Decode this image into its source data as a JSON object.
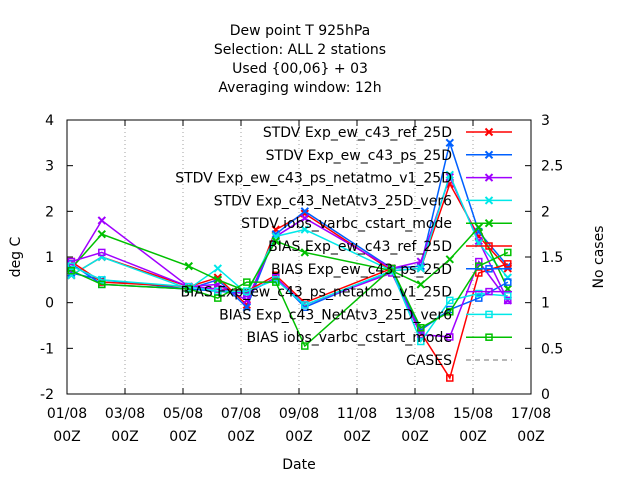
{
  "chart_data": {
    "type": "line",
    "title_lines": [
      "Dew point T 925hPa",
      "Selection: ALL      2 stations",
      "Used {00,06} + 03",
      "Averaging window: 12h"
    ],
    "xlabel": "Date",
    "ylabel": "deg C",
    "y2label": "No cases",
    "x_ticks": [
      {
        "x": 1,
        "line1": "01/08",
        "line2": "00Z"
      },
      {
        "x": 3,
        "line1": "03/08",
        "line2": "00Z"
      },
      {
        "x": 5,
        "line1": "05/08",
        "line2": "00Z"
      },
      {
        "x": 7,
        "line1": "07/08",
        "line2": "00Z"
      },
      {
        "x": 9,
        "line1": "09/08",
        "line2": "00Z"
      },
      {
        "x": 11,
        "line1": "11/08",
        "line2": "00Z"
      },
      {
        "x": 13,
        "line1": "13/08",
        "line2": "00Z"
      },
      {
        "x": 15,
        "line1": "15/08",
        "line2": "00Z"
      },
      {
        "x": 17,
        "line1": "17/08",
        "line2": "00Z"
      }
    ],
    "xlim": [
      1,
      17
    ],
    "ylim": [
      -2,
      4
    ],
    "y_ticks": [
      -2,
      -1,
      0,
      1,
      2,
      3,
      4
    ],
    "y2lim": [
      0,
      3
    ],
    "y2_ticks": [
      0,
      0.5,
      1,
      1.5,
      2,
      2.5,
      3
    ],
    "y2_tick_labels": [
      "0",
      "0.5",
      "1",
      "1.5",
      "2",
      "2.5",
      "3"
    ],
    "legend_position": "top-right",
    "series": [
      {
        "name": "STDV Exp_ew_c43_ref_25D",
        "color": "#ff0000",
        "marker": "x",
        "style": "solid",
        "x": [
          1.15,
          2.2,
          5.2,
          6.2,
          7.2,
          8.2,
          9.2,
          12.2,
          13.2,
          14.2,
          15.2,
          16.2
        ],
        "y": [
          0.6,
          1.0,
          0.35,
          0.55,
          -0.05,
          1.6,
          1.95,
          0.7,
          0.75,
          2.6,
          1.45,
          0.75
        ]
      },
      {
        "name": "STDV Exp_ew_c43_ps_25D",
        "color": "#0060ff",
        "marker": "x",
        "style": "solid",
        "x": [
          1.15,
          2.2,
          5.2,
          6.2,
          7.2,
          8.2,
          9.2,
          12.2,
          13.2,
          14.2,
          15.2,
          16.2
        ],
        "y": [
          0.65,
          0.5,
          0.3,
          0.5,
          -0.1,
          1.5,
          2.0,
          0.75,
          0.8,
          3.5,
          1.55,
          0.8
        ]
      },
      {
        "name": "STDV Exp_ew_c43_ps_netatmo_v1_25D",
        "color": "#a000ff",
        "marker": "x",
        "style": "solid",
        "x": [
          1.15,
          2.2,
          5.2,
          6.2,
          7.2,
          8.2,
          9.2,
          12.2,
          13.2,
          14.2,
          15.2,
          16.2
        ],
        "y": [
          0.7,
          1.8,
          0.35,
          0.4,
          0.05,
          1.45,
          1.85,
          0.75,
          0.9,
          2.75,
          1.35,
          0.05
        ]
      },
      {
        "name": "STDV Exp_c43_NetAtv3_25D_ver6",
        "color": "#00e8e8",
        "marker": "x",
        "style": "solid",
        "x": [
          1.15,
          2.2,
          5.2,
          6.2,
          7.2,
          8.2,
          9.2,
          12.2,
          13.2,
          14.2,
          15.2,
          16.2
        ],
        "y": [
          0.6,
          1.0,
          0.3,
          0.75,
          0.2,
          1.45,
          1.6,
          0.7,
          0.75,
          2.8,
          1.3,
          0.55
        ]
      },
      {
        "name": "STDV iobs_varbc_cstart_mode",
        "color": "#00c000",
        "marker": "x",
        "style": "solid",
        "x": [
          1.15,
          2.2,
          5.2,
          6.2,
          7.2,
          8.2,
          9.2,
          12.2,
          13.2,
          14.2,
          15.2,
          16.2
        ],
        "y": [
          0.75,
          1.5,
          0.8,
          0.5,
          0.25,
          1.35,
          1.1,
          0.7,
          0.4,
          0.95,
          1.65,
          0.3
        ]
      },
      {
        "name": "BIAS Exp_ew_c43_ref_25D",
        "color": "#ff0000",
        "marker": "square",
        "style": "solid",
        "x": [
          1.15,
          2.2,
          5.2,
          6.2,
          7.2,
          8.2,
          9.2,
          12.2,
          13.2,
          14.2,
          15.2,
          16.2
        ],
        "y": [
          0.9,
          0.45,
          0.35,
          0.3,
          0.25,
          0.6,
          0.0,
          0.75,
          -0.65,
          -1.65,
          0.65,
          0.85
        ]
      },
      {
        "name": "BIAS Exp_ew_c43_ps_25D",
        "color": "#0060ff",
        "marker": "square",
        "style": "solid",
        "x": [
          1.15,
          2.2,
          5.2,
          6.2,
          7.2,
          8.2,
          9.2,
          12.2,
          13.2,
          14.2,
          15.2,
          16.2
        ],
        "y": [
          0.85,
          0.4,
          0.3,
          0.25,
          0.2,
          0.55,
          -0.1,
          0.7,
          -0.6,
          -0.15,
          0.1,
          0.45
        ]
      },
      {
        "name": "BIAS Exp_ew_c43_ps_netatmo_v1_25D",
        "color": "#a000ff",
        "marker": "square",
        "style": "solid",
        "x": [
          1.15,
          2.2,
          5.2,
          6.2,
          7.2,
          8.2,
          9.2,
          12.2,
          13.2,
          14.2,
          15.2,
          16.2
        ],
        "y": [
          0.9,
          1.1,
          0.35,
          0.3,
          0.2,
          0.55,
          -0.05,
          0.65,
          -0.7,
          -0.75,
          0.9,
          0.05
        ]
      },
      {
        "name": "BIAS Exp_c43_NetAtv3_25D_ver6",
        "color": "#00e8e8",
        "marker": "square",
        "style": "solid",
        "x": [
          1.15,
          2.2,
          5.2,
          6.2,
          7.2,
          8.2,
          9.2,
          12.2,
          13.2,
          14.2,
          15.2,
          16.2
        ],
        "y": [
          0.8,
          0.5,
          0.35,
          0.25,
          0.25,
          0.5,
          -0.05,
          0.7,
          -0.85,
          0.05,
          0.2,
          0.15
        ]
      },
      {
        "name": "BIAS iobs_varbc_cstart_mode",
        "color": "#00c000",
        "marker": "square",
        "style": "solid",
        "x": [
          1.15,
          2.2,
          5.2,
          6.2,
          7.2,
          8.2,
          9.2,
          12.2,
          13.2,
          14.2,
          15.2,
          16.2
        ],
        "y": [
          0.7,
          0.4,
          0.3,
          0.1,
          0.45,
          0.45,
          -0.95,
          0.75,
          -0.55,
          -0.2,
          0.8,
          1.1
        ]
      },
      {
        "name": "CASES",
        "color": "#a0a0a0",
        "marker": "none",
        "style": "dashed",
        "axis": "y2",
        "x": [],
        "y": []
      }
    ]
  }
}
